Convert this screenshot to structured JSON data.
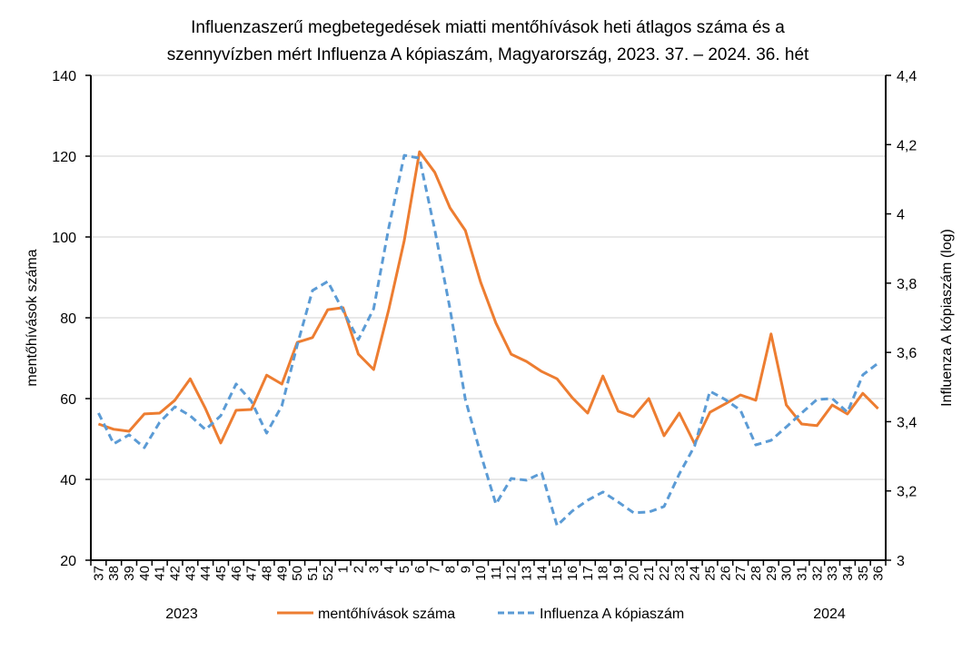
{
  "chart_data": {
    "type": "line",
    "title": [
      "Influenzaszerű megbetegedések miatti mentőhívások heti átlagos száma és a",
      "szennyvízben mért Influenza A kópiaszám, Magyarország, 2023. 37. – 2024. 36. hét"
    ],
    "ylabel": "mentőhívások száma",
    "y2label": "Influenza A kópiaszám (log)",
    "ylim": [
      20,
      140
    ],
    "yticks": [
      "20",
      "40",
      "60",
      "80",
      "100",
      "120",
      "140"
    ],
    "y2lim": [
      3,
      4.4
    ],
    "y2ticks": [
      "3",
      "3,2",
      "3,4",
      "3,6",
      "3,8",
      "4",
      "4,2",
      "4,4"
    ],
    "grid": true,
    "legend_position": "bottom",
    "year_labels": [
      "2023",
      "2024"
    ],
    "categories": [
      "37",
      "38",
      "39",
      "40",
      "41",
      "42",
      "43",
      "44",
      "45",
      "46",
      "47",
      "48",
      "49",
      "50",
      "51",
      "52",
      "1",
      "2",
      "3",
      "4",
      "5",
      "6",
      "7",
      "8",
      "9",
      "10",
      "11",
      "12",
      "13",
      "14",
      "15",
      "16",
      "17",
      "18",
      "19",
      "20",
      "21",
      "22",
      "23",
      "24",
      "25",
      "26",
      "27",
      "28",
      "29",
      "30",
      "31",
      "32",
      "33",
      "34",
      "35",
      "36"
    ],
    "series": [
      {
        "name": "mentőhívások száma",
        "axis": "left",
        "color": "#ED7D31",
        "style": "solid",
        "values": [
          53.7,
          52.4,
          51.9,
          56.2,
          56.4,
          59.6,
          64.9,
          57.5,
          49.0,
          57.1,
          57.3,
          65.8,
          63.6,
          73.9,
          75.1,
          82.0,
          82.5,
          71.0,
          67.2,
          82.2,
          99.1,
          121.1,
          116.0,
          107.2,
          101.6,
          88.8,
          78.7,
          71.0,
          69.2,
          66.7,
          64.9,
          60.2,
          56.4,
          65.6,
          56.9,
          55.5,
          60.0,
          50.8,
          56.4,
          48.8,
          56.6,
          58.7,
          60.9,
          59.6,
          76.0,
          58.4,
          53.7,
          53.3,
          58.4,
          56.2,
          61.3,
          57.5
        ]
      },
      {
        "name": "Influenza A kópiaszám",
        "axis": "right",
        "color": "#5B9BD5",
        "style": "dashed",
        "values": [
          3.425,
          3.336,
          3.362,
          3.325,
          3.398,
          3.443,
          3.417,
          3.377,
          3.417,
          3.509,
          3.459,
          3.367,
          3.446,
          3.621,
          3.779,
          3.805,
          3.721,
          3.637,
          3.726,
          3.962,
          4.169,
          4.161,
          3.954,
          3.726,
          3.464,
          3.307,
          3.162,
          3.236,
          3.231,
          3.252,
          3.1,
          3.142,
          3.173,
          3.197,
          3.168,
          3.137,
          3.139,
          3.155,
          3.249,
          3.33,
          3.488,
          3.464,
          3.433,
          3.333,
          3.346,
          3.385,
          3.425,
          3.464,
          3.467,
          3.427,
          3.535,
          3.569
        ]
      }
    ]
  }
}
